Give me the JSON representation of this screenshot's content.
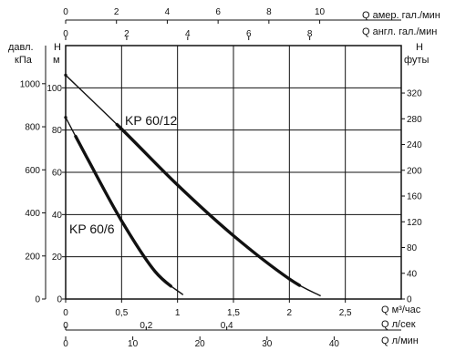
{
  "chart_data": {
    "type": "line",
    "series": [
      {
        "name": "KP 60/12",
        "x_m3h": [
          0,
          0.5,
          1.0,
          1.5,
          2.0,
          2.28
        ],
        "y_m": [
          106,
          80.5,
          54,
          30,
          9.5,
          1.5
        ]
      },
      {
        "name": "KP 60/6",
        "x_m3h": [
          0,
          0.2,
          0.5,
          0.8,
          1.05
        ],
        "y_m": [
          86,
          66,
          37,
          13,
          2
        ]
      }
    ],
    "curve_labels": {
      "kp60_12": "KP 60/12",
      "kp60_6": "KP 60/6"
    },
    "axes": {
      "bottom_main": {
        "unit_label": "Q  м³/час",
        "ticks": [
          "0",
          "0,5",
          "1",
          "1,5",
          "2",
          "2,5"
        ],
        "range": [
          0,
          3
        ]
      },
      "bottom_ls": {
        "unit_label": "Q  л/сек",
        "ticks": [
          "0",
          "0,2",
          "0,4"
        ],
        "range": [
          0,
          0.8333
        ]
      },
      "bottom_lmin": {
        "unit_label": "Q  л/мин",
        "ticks": [
          "0",
          "10",
          "20",
          "30",
          "40"
        ],
        "range": [
          0,
          50
        ]
      },
      "top_us_gal": {
        "unit_label": "Q  амер. гал./мин",
        "ticks": [
          "0",
          "2",
          "4",
          "6",
          "8",
          "10"
        ],
        "range": [
          0,
          13.21
        ]
      },
      "top_uk_gal": {
        "unit_label": "Q  англ. гал./мин",
        "ticks": [
          "0",
          "2",
          "4",
          "6",
          "8"
        ],
        "range": [
          0,
          11
        ]
      },
      "left_head_m": {
        "unit_label_1": "H",
        "unit_label_2": "м",
        "ticks": [
          "0",
          "20",
          "40",
          "60",
          "80",
          "100"
        ],
        "range": [
          0,
          120
        ]
      },
      "left_pressure_kpa": {
        "unit_label_1": "давл.",
        "unit_label_2": "кПа",
        "ticks": [
          "0",
          "200",
          "400",
          "600",
          "800",
          "1000"
        ],
        "range": [
          0,
          1177
        ]
      },
      "right_head_ft": {
        "unit_label_1": "H",
        "unit_label_2": "футы",
        "ticks": [
          "0",
          "40",
          "80",
          "120",
          "160",
          "200",
          "240",
          "280",
          "320"
        ],
        "range": [
          0,
          393.7
        ]
      }
    },
    "grid": true
  }
}
